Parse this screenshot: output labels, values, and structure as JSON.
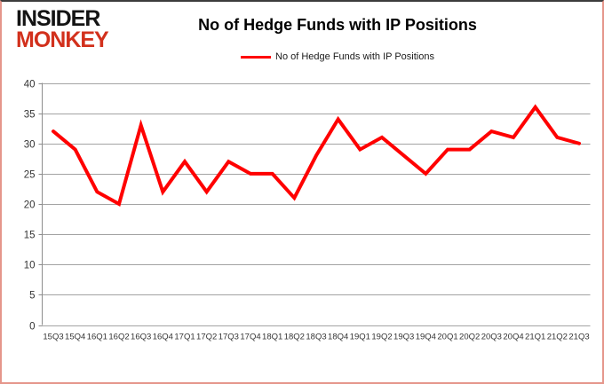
{
  "logo": {
    "line1": "INSIDER",
    "line2": "MONKEY"
  },
  "header": {
    "title": "No of Hedge Funds with IP Positions"
  },
  "legend": {
    "label": "No of Hedge Funds with IP Positions",
    "swatch_color": "#ff0000"
  },
  "colors": {
    "series_line": "#ff0000",
    "gridline": "#a3a3a3",
    "axis": "#8c8c8c",
    "tick_label": "#333333",
    "logo_red": "#d2301c",
    "border_side": "#e5968b",
    "border_top": "#3c3c3c"
  },
  "chart_data": {
    "type": "line",
    "title": "No of Hedge Funds with IP Positions",
    "categories": [
      "15Q3",
      "15Q4",
      "16Q1",
      "16Q2",
      "16Q3",
      "16Q4",
      "17Q1",
      "17Q2",
      "17Q3",
      "17Q4",
      "18Q1",
      "18Q2",
      "18Q3",
      "18Q4",
      "19Q1",
      "19Q2",
      "19Q3",
      "19Q4",
      "20Q1",
      "20Q2",
      "20Q3",
      "20Q4",
      "21Q1",
      "21Q2",
      "21Q3"
    ],
    "series": [
      {
        "name": "No of Hedge Funds with IP Positions",
        "color": "#ff0000",
        "values": [
          32,
          29,
          22,
          20,
          33,
          22,
          27,
          22,
          27,
          25,
          25,
          21,
          28,
          34,
          29,
          31,
          28,
          25,
          29,
          29,
          32,
          31,
          36,
          31,
          30
        ]
      }
    ],
    "xlabel": "",
    "ylabel": "",
    "ylim": [
      0,
      40
    ],
    "yticks": [
      0,
      5,
      10,
      15,
      20,
      25,
      30,
      35,
      40
    ],
    "grid": true,
    "legend_position": "top"
  }
}
